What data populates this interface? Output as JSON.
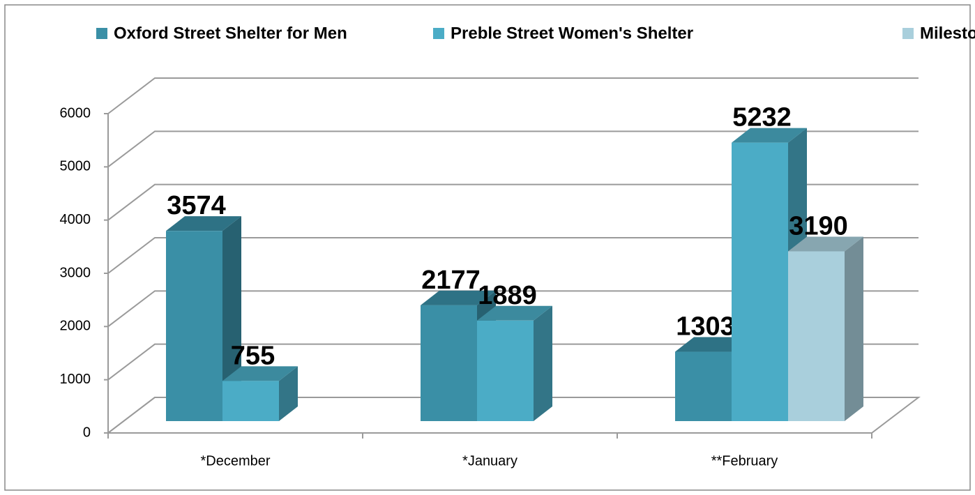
{
  "chart_data": {
    "type": "bar3d",
    "categories": [
      "*December",
      "*January",
      "**February"
    ],
    "series": [
      {
        "name": "Oxford Street Shelter for Men",
        "color": "#3a8fa6",
        "values": [
          3574,
          2177,
          1303
        ]
      },
      {
        "name": "Preble Street Women's Shelter",
        "color": "#4bacc6",
        "values": [
          755,
          1889,
          5232
        ]
      },
      {
        "name": "Milestone",
        "color": "#a9cfdc",
        "values": [
          null,
          null,
          3190
        ]
      }
    ],
    "ylim": [
      0,
      6000
    ],
    "yticks": [
      0,
      1000,
      2000,
      3000,
      4000,
      5000,
      6000
    ],
    "grid": true,
    "legend": "top"
  }
}
